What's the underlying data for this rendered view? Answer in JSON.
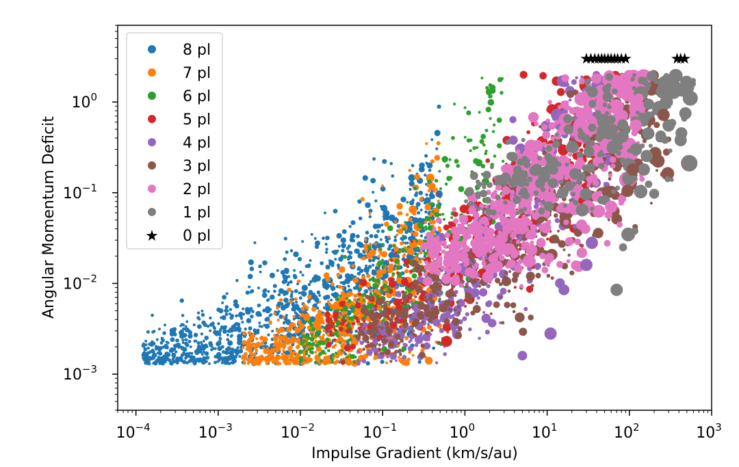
{
  "chart_data": {
    "type": "scatter",
    "title": "",
    "xlabel": "Impulse Gradient (km/s/au)",
    "ylabel": "Angular Momentum Deficit",
    "xscale": "log",
    "yscale": "log",
    "xlim": [
      6e-05,
      1000
    ],
    "ylim": [
      0.0004,
      7
    ],
    "x_ticks": [
      {
        "value": 0.0001,
        "base": "10",
        "exp": "−4"
      },
      {
        "value": 0.001,
        "base": "10",
        "exp": "−3"
      },
      {
        "value": 0.01,
        "base": "10",
        "exp": "−2"
      },
      {
        "value": 0.1,
        "base": "10",
        "exp": "−1"
      },
      {
        "value": 1,
        "base": "10",
        "exp": "0"
      },
      {
        "value": 10,
        "base": "10",
        "exp": "1"
      },
      {
        "value": 100,
        "base": "10",
        "exp": "2"
      },
      {
        "value": 1000,
        "base": "10",
        "exp": "3"
      }
    ],
    "y_ticks": [
      {
        "value": 0.001,
        "base": "10",
        "exp": "−3"
      },
      {
        "value": 0.01,
        "base": "10",
        "exp": "−2"
      },
      {
        "value": 0.1,
        "base": "10",
        "exp": "−1"
      },
      {
        "value": 1,
        "base": "10",
        "exp": "0"
      }
    ],
    "grid": false,
    "legend_position": "top-left",
    "series": [
      {
        "name": "8 pl",
        "color": "#1f77b4",
        "marker": "circle",
        "x_range": [
          0.00012,
          0.5
        ],
        "y_center": [
          0.0016,
          0.04
        ],
        "n": 1200,
        "size": [
          2,
          5
        ]
      },
      {
        "name": "7 pl",
        "color": "#ff7f0e",
        "marker": "circle",
        "x_range": [
          0.002,
          0.5
        ],
        "y_center": [
          0.0016,
          0.02
        ],
        "n": 700,
        "size": [
          2,
          6
        ]
      },
      {
        "name": "6 pl",
        "color": "#2ca02c",
        "marker": "circle",
        "x_range": [
          0.01,
          3
        ],
        "y_center": [
          0.002,
          0.5
        ],
        "n": 350,
        "size": [
          2,
          5
        ]
      },
      {
        "name": "5 pl",
        "color": "#d62728",
        "marker": "circle",
        "x_range": [
          0.02,
          80
        ],
        "y_center": [
          0.003,
          1.5
        ],
        "n": 400,
        "size": [
          2,
          8
        ]
      },
      {
        "name": "4 pl",
        "color": "#9467bd",
        "marker": "circle",
        "x_range": [
          0.05,
          60
        ],
        "y_center": [
          0.002,
          1.5
        ],
        "n": 450,
        "size": [
          2,
          9
        ]
      },
      {
        "name": "3 pl",
        "color": "#8c564b",
        "marker": "circle",
        "x_range": [
          0.05,
          300
        ],
        "y_center": [
          0.003,
          1.8
        ],
        "n": 600,
        "size": [
          2,
          9
        ]
      },
      {
        "name": "2 pl",
        "color": "#e377c2",
        "marker": "circle",
        "x_range": [
          0.3,
          150
        ],
        "y_center": [
          0.02,
          1.5
        ],
        "n": 650,
        "size": [
          3,
          11
        ]
      },
      {
        "name": "1 pl",
        "color": "#7f7f7f",
        "marker": "circle",
        "x_range": [
          1,
          600
        ],
        "y_center": [
          0.1,
          1.8
        ],
        "n": 220,
        "size": [
          3,
          11
        ]
      },
      {
        "name": "0 pl",
        "color": "#000000",
        "marker": "star",
        "x": [
          30,
          34,
          38,
          42,
          46,
          50,
          55,
          60,
          66,
          72,
          80,
          90,
          380,
          420,
          470
        ],
        "y": [
          3,
          3,
          3,
          3,
          3,
          3,
          3,
          3,
          3,
          3,
          3,
          3,
          3,
          3,
          3
        ]
      }
    ],
    "large_markers": [
      {
        "series": "1 pl",
        "x": 500,
        "y": 1.5,
        "r": 10
      },
      {
        "series": "1 pl",
        "x": 550,
        "y": 1.1,
        "r": 11
      },
      {
        "series": "1 pl",
        "x": 480,
        "y": 0.75,
        "r": 9
      },
      {
        "series": "1 pl",
        "x": 300,
        "y": 0.55,
        "r": 9
      },
      {
        "series": "1 pl",
        "x": 420,
        "y": 0.38,
        "r": 9
      },
      {
        "series": "1 pl",
        "x": 170,
        "y": 0.45,
        "r": 9
      },
      {
        "series": "1 pl",
        "x": 120,
        "y": 0.3,
        "r": 9
      },
      {
        "series": "1 pl",
        "x": 150,
        "y": 0.18,
        "r": 9
      },
      {
        "series": "1 pl",
        "x": 100,
        "y": 0.2,
        "r": 10
      },
      {
        "series": "1 pl",
        "x": 70,
        "y": 0.0085,
        "r": 9
      },
      {
        "series": "3 pl",
        "x": 260,
        "y": 0.72,
        "r": 9
      },
      {
        "series": "3 pl",
        "x": 95,
        "y": 0.105,
        "r": 9
      },
      {
        "series": "3 pl",
        "x": 110,
        "y": 0.18,
        "r": 9
      },
      {
        "series": "2 pl",
        "x": 130,
        "y": 1.1,
        "r": 7
      },
      {
        "series": "2 pl",
        "x": 120,
        "y": 0.55,
        "r": 9
      },
      {
        "series": "2 pl",
        "x": 60,
        "y": 0.07,
        "r": 9
      },
      {
        "series": "4 pl",
        "x": 35,
        "y": 0.028,
        "r": 9
      },
      {
        "series": "4 pl",
        "x": 30,
        "y": 0.016,
        "r": 9
      },
      {
        "series": "4 pl",
        "x": 11,
        "y": 0.0028,
        "r": 9
      },
      {
        "series": "4 pl",
        "x": 5,
        "y": 0.0016,
        "r": 7
      },
      {
        "series": "4 pl",
        "x": 16,
        "y": 0.0085,
        "r": 8
      },
      {
        "series": "5 pl",
        "x": 0.6,
        "y": 0.0023,
        "r": 8
      }
    ]
  }
}
